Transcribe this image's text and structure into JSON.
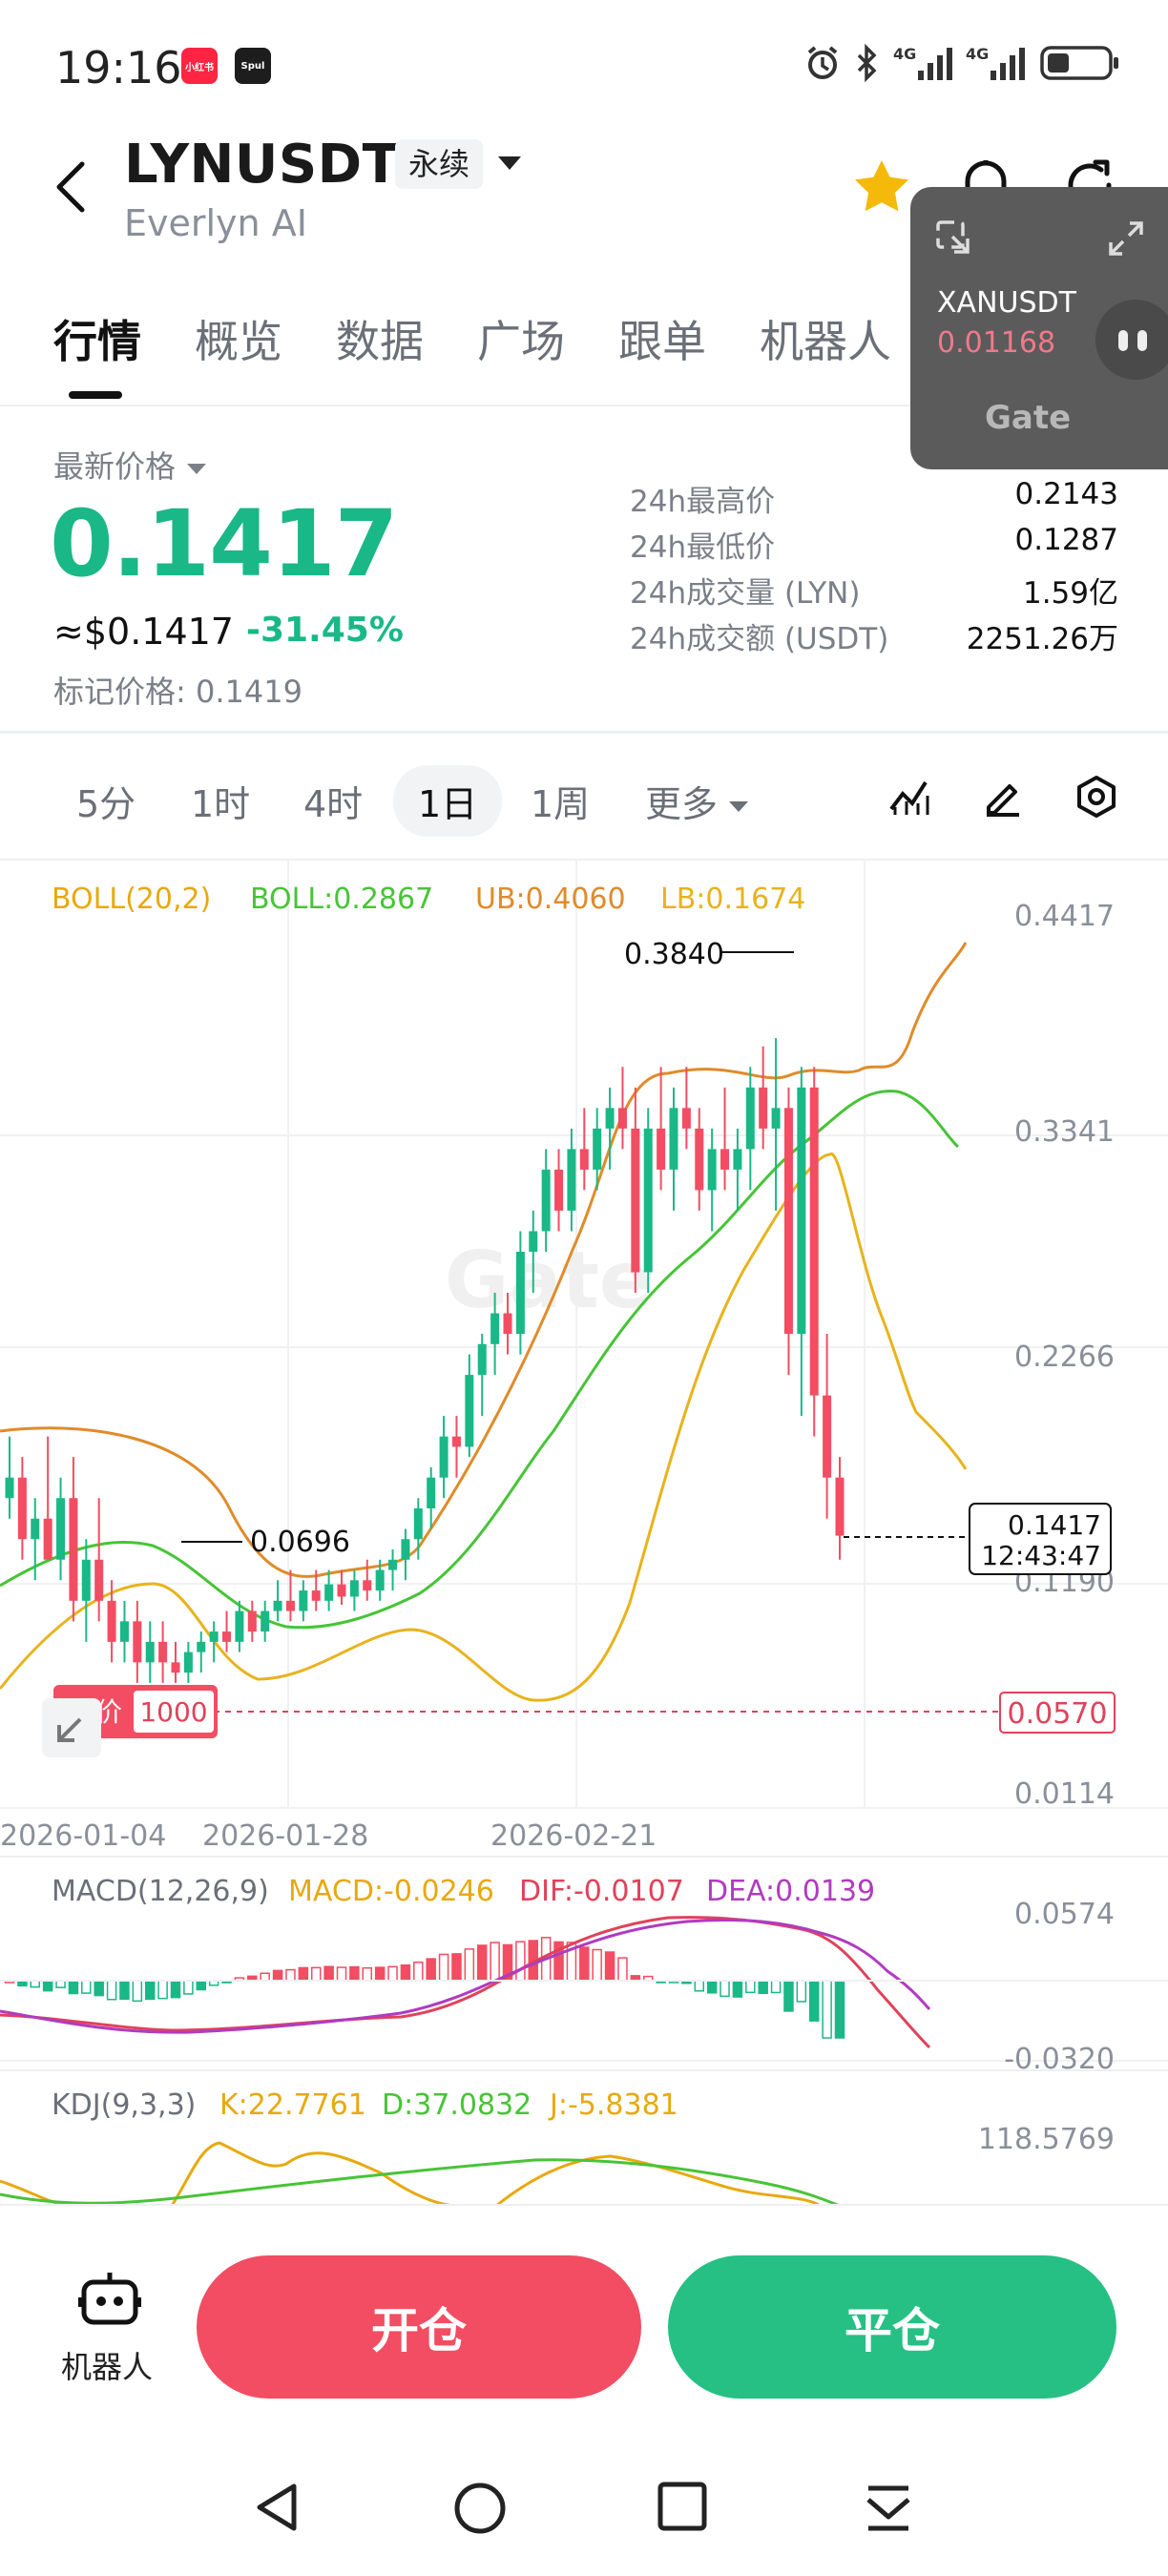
{
  "status_bar": {
    "time": "19:16",
    "apps": [
      "小红书",
      "Spul"
    ],
    "icons": [
      "alarm-icon",
      "bluetooth-icon",
      "signal-4g-icon",
      "signal-4g-icon",
      "battery-icon"
    ]
  },
  "header": {
    "pair": "LYNUSDT",
    "contract_type": "永续",
    "subtitle": "Everlyn AI"
  },
  "tabs": [
    {
      "label": "行情",
      "active": true
    },
    {
      "label": "概览"
    },
    {
      "label": "数据"
    },
    {
      "label": "广场"
    },
    {
      "label": "跟单"
    },
    {
      "label": "机器人"
    }
  ],
  "mini_widget": {
    "symbol": "XANUSDT",
    "price": "0.01168",
    "logo": "Gate"
  },
  "price": {
    "latest_label": "最新价格",
    "last": "0.1417",
    "usd": "≈$0.1417",
    "change": "-31.45%",
    "mark_label": "标记价格:",
    "mark": "0.1419",
    "colors": {
      "up": "#1ab886",
      "down": "#f24d62"
    }
  },
  "stats": [
    {
      "label": "24h最高价",
      "value": "0.2143"
    },
    {
      "label": "24h最低价",
      "value": "0.1287"
    },
    {
      "label": "24h成交量 (LYN)",
      "value": "1.59亿"
    },
    {
      "label": "24h成交额 (USDT)",
      "value": "2251.26万"
    }
  ],
  "intervals": [
    {
      "label": "5分"
    },
    {
      "label": "1时"
    },
    {
      "label": "4时"
    },
    {
      "label": "1日",
      "active": true
    },
    {
      "label": "1周"
    },
    {
      "label": "更多"
    }
  ],
  "chart_tools": [
    "indicator-icon",
    "draw-icon",
    "settings-icon"
  ],
  "chart": {
    "boll": {
      "name": "BOLL(20,2)",
      "mid": "BOLL:0.2867",
      "ub": "UB:0.4060",
      "lb": "LB:0.1674"
    },
    "y_labels": [
      "0.4417",
      "0.3341",
      "0.2266",
      "0.1190",
      "0.0114"
    ],
    "x_labels": [
      "2026-01-04",
      "2026-01-28",
      "2026-02-21"
    ],
    "high_marker": "0.3840",
    "low_marker": "0.0696",
    "last_price_tag": "0.1417",
    "countdown": "12:43:47",
    "limit_label": "限价",
    "limit_qty": "1000",
    "limit_price": "0.0570",
    "watermark": "Gate",
    "macd": {
      "name": "MACD(12,26,9)",
      "macd": "MACD:-0.0246",
      "dif": "DIF:-0.0107",
      "dea": "DEA:0.0139",
      "top": "0.0574",
      "bottom": "-0.0320"
    },
    "kdj": {
      "name": "KDJ(9,3,3)",
      "k": "K:22.7761",
      "d": "D:37.0832",
      "j": "J:-5.8381",
      "top": "118.5769"
    }
  },
  "chart_data": {
    "type": "candlestick",
    "ylim": [
      0.0114,
      0.4417
    ],
    "yticks": [
      0.4417,
      0.3341,
      0.2266,
      0.119,
      0.0114
    ],
    "candles": [
      [
        0.16,
        0.19,
        0.15,
        0.17
      ],
      [
        0.17,
        0.18,
        0.13,
        0.14
      ],
      [
        0.14,
        0.16,
        0.12,
        0.15
      ],
      [
        0.15,
        0.19,
        0.13,
        0.13
      ],
      [
        0.13,
        0.17,
        0.12,
        0.16
      ],
      [
        0.16,
        0.18,
        0.1,
        0.11
      ],
      [
        0.11,
        0.14,
        0.09,
        0.13
      ],
      [
        0.13,
        0.16,
        0.1,
        0.11
      ],
      [
        0.11,
        0.12,
        0.08,
        0.09
      ],
      [
        0.09,
        0.11,
        0.08,
        0.1
      ],
      [
        0.1,
        0.11,
        0.07,
        0.08
      ],
      [
        0.08,
        0.1,
        0.07,
        0.09
      ],
      [
        0.09,
        0.1,
        0.07,
        0.08
      ],
      [
        0.08,
        0.09,
        0.07,
        0.075
      ],
      [
        0.075,
        0.09,
        0.07,
        0.085
      ],
      [
        0.085,
        0.095,
        0.075,
        0.09
      ],
      [
        0.09,
        0.1,
        0.08,
        0.095
      ],
      [
        0.095,
        0.105,
        0.085,
        0.09
      ],
      [
        0.09,
        0.11,
        0.085,
        0.105
      ],
      [
        0.105,
        0.11,
        0.09,
        0.095
      ],
      [
        0.095,
        0.11,
        0.09,
        0.105
      ],
      [
        0.105,
        0.12,
        0.1,
        0.11
      ],
      [
        0.11,
        0.125,
        0.1,
        0.105
      ],
      [
        0.105,
        0.12,
        0.1,
        0.115
      ],
      [
        0.115,
        0.125,
        0.105,
        0.11
      ],
      [
        0.11,
        0.125,
        0.105,
        0.118
      ],
      [
        0.118,
        0.125,
        0.108,
        0.112
      ],
      [
        0.112,
        0.125,
        0.105,
        0.12
      ],
      [
        0.12,
        0.13,
        0.11,
        0.115
      ],
      [
        0.115,
        0.13,
        0.11,
        0.125
      ],
      [
        0.125,
        0.135,
        0.115,
        0.13
      ],
      [
        0.13,
        0.145,
        0.12,
        0.14
      ],
      [
        0.14,
        0.16,
        0.13,
        0.155
      ],
      [
        0.155,
        0.175,
        0.145,
        0.17
      ],
      [
        0.17,
        0.2,
        0.16,
        0.19
      ],
      [
        0.19,
        0.2,
        0.17,
        0.185
      ],
      [
        0.185,
        0.23,
        0.18,
        0.22
      ],
      [
        0.22,
        0.24,
        0.2,
        0.235
      ],
      [
        0.235,
        0.26,
        0.22,
        0.25
      ],
      [
        0.25,
        0.26,
        0.23,
        0.24
      ],
      [
        0.24,
        0.29,
        0.23,
        0.28
      ],
      [
        0.28,
        0.3,
        0.26,
        0.29
      ],
      [
        0.29,
        0.33,
        0.28,
        0.32
      ],
      [
        0.32,
        0.33,
        0.29,
        0.3
      ],
      [
        0.3,
        0.34,
        0.29,
        0.33
      ],
      [
        0.33,
        0.35,
        0.31,
        0.32
      ],
      [
        0.32,
        0.35,
        0.31,
        0.34
      ],
      [
        0.34,
        0.36,
        0.32,
        0.35
      ],
      [
        0.35,
        0.37,
        0.33,
        0.34
      ],
      [
        0.34,
        0.36,
        0.26,
        0.27
      ],
      [
        0.27,
        0.35,
        0.26,
        0.34
      ],
      [
        0.34,
        0.37,
        0.31,
        0.32
      ],
      [
        0.32,
        0.36,
        0.3,
        0.35
      ],
      [
        0.35,
        0.37,
        0.33,
        0.34
      ],
      [
        0.34,
        0.35,
        0.3,
        0.31
      ],
      [
        0.31,
        0.34,
        0.29,
        0.33
      ],
      [
        0.33,
        0.36,
        0.31,
        0.32
      ],
      [
        0.32,
        0.34,
        0.3,
        0.33
      ],
      [
        0.33,
        0.37,
        0.31,
        0.36
      ],
      [
        0.36,
        0.38,
        0.33,
        0.34
      ],
      [
        0.34,
        0.384,
        0.3,
        0.35
      ],
      [
        0.35,
        0.36,
        0.22,
        0.24
      ],
      [
        0.24,
        0.37,
        0.2,
        0.36
      ],
      [
        0.36,
        0.37,
        0.19,
        0.21
      ],
      [
        0.21,
        0.24,
        0.15,
        0.17
      ],
      [
        0.17,
        0.18,
        0.13,
        0.1417
      ]
    ],
    "high_marker": 0.384,
    "low_marker": 0.0696,
    "limit_price": 0.057
  }
}
